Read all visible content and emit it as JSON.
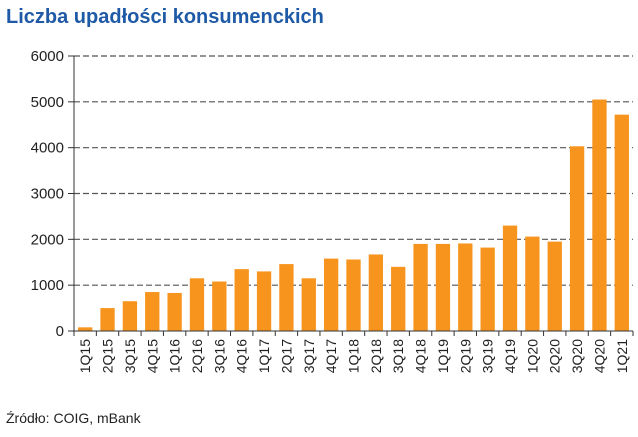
{
  "title": "Liczba upadłości konsumenckich",
  "source": "Źródło: COIG, mBank",
  "colors": {
    "bar": "#f7941d",
    "grid": "#555555",
    "axis": "#333333"
  },
  "chart_data": {
    "type": "bar",
    "title": "Liczba upadłości konsumenckich",
    "xlabel": "",
    "ylabel": "",
    "ylim": [
      0,
      6000
    ],
    "yticks": [
      0,
      1000,
      2000,
      3000,
      4000,
      5000,
      6000
    ],
    "grid": true,
    "categories": [
      "1Q15",
      "2Q15",
      "3Q15",
      "4Q15",
      "1Q16",
      "2Q16",
      "3Q16",
      "4Q16",
      "1Q17",
      "2Q17",
      "3Q17",
      "4Q17",
      "1Q18",
      "2Q18",
      "3Q18",
      "4Q18",
      "1Q19",
      "2Q19",
      "3Q19",
      "4Q19",
      "1Q20",
      "2Q20",
      "3Q20",
      "4Q20",
      "1Q21"
    ],
    "labeled_categories": [
      "1Q15",
      "2Q15",
      "3Q15",
      "4Q15",
      "1Q16",
      "2Q16",
      "3Q16",
      "4Q16",
      "1Q17",
      "2Q17",
      "3Q17",
      "4Q17",
      "1Q18",
      "2Q18",
      "3Q18",
      "4Q18",
      "1Q19",
      "2Q19",
      "3Q19",
      "4Q19",
      "1Q20",
      "2Q20",
      "3Q20",
      "4Q20",
      "1Q21"
    ],
    "values": [
      80,
      500,
      650,
      850,
      830,
      1150,
      1080,
      1350,
      1300,
      1460,
      1150,
      1580,
      1560,
      1670,
      1400,
      1900,
      1900,
      1910,
      1820,
      2300,
      2060,
      1950,
      4030,
      5050,
      4720
    ]
  }
}
